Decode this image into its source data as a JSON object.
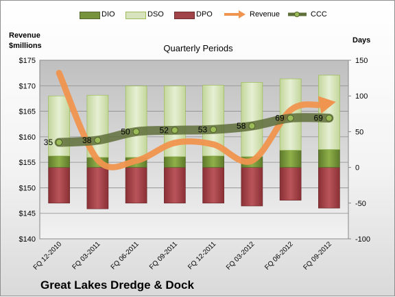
{
  "company": "Great Lakes Dredge & Dock",
  "left_axis_title": [
    "Revenue",
    "$millions"
  ],
  "right_axis_title": "Days",
  "colors": {
    "dio": "#77933c",
    "dso": "#d7e4bd",
    "dpo": "#a04449",
    "revenue": "#f0954f",
    "ccc": "#5f6f3a",
    "plot_bg": "#d9d9d9"
  },
  "chart_data": {
    "type": "bar",
    "title": "Quarterly Periods",
    "categories": [
      "FQ 12-2010",
      "FQ 03-2011",
      "FQ 06-2011",
      "FQ 09-2011",
      "FQ 12-2011",
      "FQ 03-2012",
      "FQ 06-2012",
      "FQ 09-2012"
    ],
    "series": [
      {
        "name": "DIO",
        "axis": "right",
        "kind": "stacked-bar",
        "values": [
          16,
          14,
          14,
          15,
          16,
          15,
          24,
          25
        ]
      },
      {
        "name": "DSO",
        "axis": "right",
        "kind": "stacked-bar",
        "values": [
          84,
          87,
          100,
          99,
          99,
          104,
          100,
          104
        ]
      },
      {
        "name": "DPO",
        "axis": "right",
        "kind": "stacked-bar-negative",
        "values": [
          -50,
          -58,
          -50,
          -50,
          -50,
          -54,
          -46,
          -57
        ]
      },
      {
        "name": "Revenue",
        "axis": "left",
        "kind": "line",
        "values": [
          172.5,
          155.5,
          155.3,
          158.8,
          158.5,
          155.3,
          165.2,
          166.6
        ]
      },
      {
        "name": "CCC",
        "axis": "right",
        "kind": "line-labeled",
        "values": [
          35,
          38,
          50,
          52,
          53,
          58,
          69,
          69
        ]
      }
    ],
    "left_axis": {
      "min": 140,
      "max": 175,
      "step": 5,
      "tick_labels": [
        "$140",
        "$145",
        "$150",
        "$155",
        "$160",
        "$165",
        "$170",
        "$175"
      ]
    },
    "right_axis": {
      "min": -100,
      "max": 150,
      "step": 50,
      "tick_labels": [
        "-100",
        "-50",
        "0",
        "50",
        "100",
        "150"
      ]
    },
    "grid": true,
    "legend": "top"
  }
}
